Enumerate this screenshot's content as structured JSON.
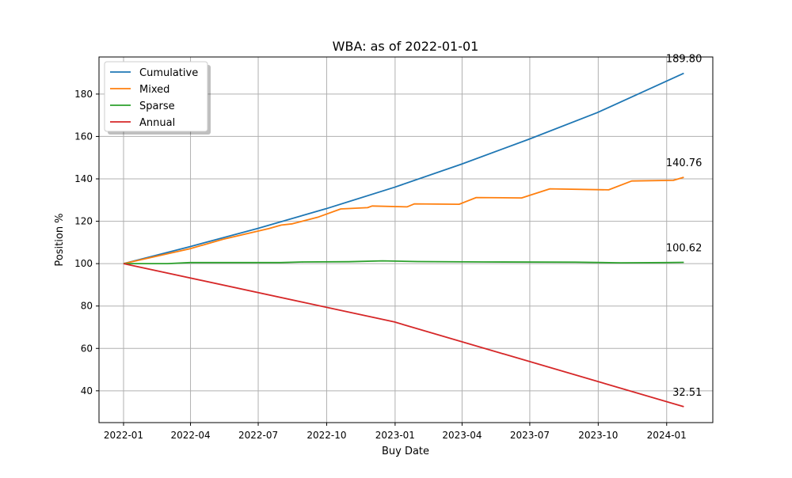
{
  "chart_data": {
    "type": "line",
    "title": "WBA: as of 2022-01-01",
    "xlabel": "Buy Date",
    "ylabel": "Position %",
    "x_ticks": [
      "2022-01",
      "2022-04",
      "2022-07",
      "2022-10",
      "2023-01",
      "2023-04",
      "2023-07",
      "2023-10",
      "2024-01"
    ],
    "y_ticks": [
      "40",
      "60",
      "80",
      "100",
      "120",
      "140",
      "160",
      "180"
    ],
    "xlim": [
      "2021-11-29",
      "2024-03-03"
    ],
    "ylim": [
      25,
      197.5
    ],
    "grid": true,
    "legend_position": "top-left",
    "series": [
      {
        "name": "Cumulative",
        "color": "#1f77b4",
        "points": [
          [
            "2022-01-01",
            100
          ],
          [
            "2022-03-31",
            108
          ],
          [
            "2022-06-30",
            116.6
          ],
          [
            "2022-09-30",
            125.9
          ],
          [
            "2022-12-31",
            136.0
          ],
          [
            "2023-03-31",
            146.9
          ],
          [
            "2023-06-30",
            158.7
          ],
          [
            "2023-09-30",
            171.3
          ],
          [
            "2024-01-24",
            189.8
          ]
        ],
        "end_label": "189.80"
      },
      {
        "name": "Mixed",
        "color": "#ff7f0e",
        "points": [
          [
            "2022-01-01",
            100
          ],
          [
            "2022-03-31",
            107
          ],
          [
            "2022-05-15",
            111.5
          ],
          [
            "2022-07-15",
            116.5
          ],
          [
            "2022-08-01",
            118.2
          ],
          [
            "2022-08-16",
            118.8
          ],
          [
            "2022-09-20",
            122
          ],
          [
            "2022-10-20",
            125.8
          ],
          [
            "2022-11-25",
            126.4
          ],
          [
            "2022-12-01",
            127.2
          ],
          [
            "2023-01-17",
            126.8
          ],
          [
            "2023-01-27",
            128.2
          ],
          [
            "2023-03-28",
            128
          ],
          [
            "2023-04-20",
            131.2
          ],
          [
            "2023-06-20",
            131
          ],
          [
            "2023-07-28",
            135.3
          ],
          [
            "2023-10-15",
            134.8
          ],
          [
            "2023-11-15",
            139
          ],
          [
            "2024-01-10",
            139.3
          ],
          [
            "2024-01-24",
            140.76
          ]
        ],
        "end_label": "140.76"
      },
      {
        "name": "Sparse",
        "color": "#2ca02c",
        "points": [
          [
            "2022-01-01",
            100
          ],
          [
            "2022-03-01",
            100
          ],
          [
            "2022-03-31",
            100.5
          ],
          [
            "2022-06-30",
            100.5
          ],
          [
            "2022-07-31",
            100.5
          ],
          [
            "2022-08-31",
            100.8
          ],
          [
            "2022-10-31",
            100.9
          ],
          [
            "2022-12-15",
            101.3
          ],
          [
            "2023-01-31",
            101
          ],
          [
            "2023-04-30",
            100.8
          ],
          [
            "2023-08-31",
            100.7
          ],
          [
            "2023-10-31",
            100.4
          ],
          [
            "2023-12-31",
            100.5
          ],
          [
            "2024-01-24",
            100.62
          ]
        ],
        "end_label": "100.62"
      },
      {
        "name": "Annual",
        "color": "#d62728",
        "points": [
          [
            "2022-01-01",
            100
          ],
          [
            "2022-12-31",
            72.5
          ],
          [
            "2024-01-24",
            32.51
          ]
        ],
        "end_label": "32.51"
      }
    ]
  }
}
